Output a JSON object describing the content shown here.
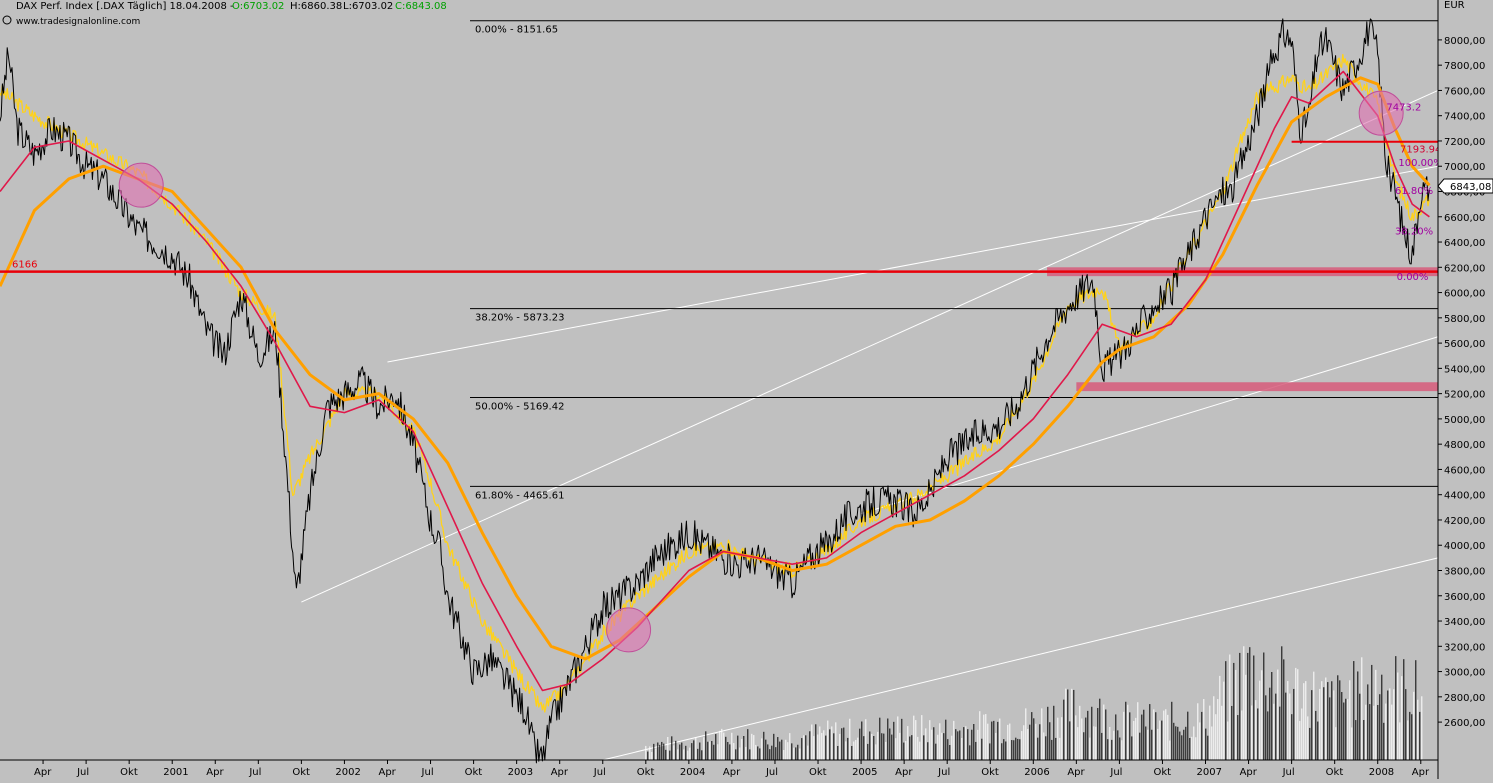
{
  "header": {
    "title_main": "DAX Perf. Index [.DAX  Täglich] 18.04.2008 - ",
    "open": "O:6703.02",
    "high": "H:6860.38",
    "low": "L:6703.02",
    "close": "C:6843.08",
    "watermark": "www.tradesignalonline.com",
    "watermark_icon": "copyright-icon"
  },
  "colors": {
    "background": "#c0c0c0",
    "price": "#000000",
    "ma_fast": "#ffd21a",
    "ma_mid": "#e0184a",
    "ma_slow": "#ffa000",
    "support_line": "#e8000a",
    "zone": "#d75a7a",
    "circle": "#e070b0",
    "fib_line": "#000000",
    "channel": "#ffffff",
    "volume": "#000000",
    "value_up": "#00a000",
    "value_down": "#e00000"
  },
  "chart_data": {
    "type": "line",
    "title": "DAX Perf. Index [.DAX  Täglich] 18.04.2008",
    "ylabel": "EUR",
    "ylim": [
      2300,
      8300
    ],
    "y_ticks": [
      "8000,00",
      "7800,00",
      "7600,00",
      "7400,00",
      "7200,00",
      "7000,00",
      "6800,00",
      "6600,00",
      "6400,00",
      "6200,00",
      "6000,00",
      "5800,00",
      "5600,00",
      "5400,00",
      "5200,00",
      "5000,00",
      "4800,00",
      "4600,00",
      "4400,00",
      "4200,00",
      "4000,00",
      "3800,00",
      "3600,00",
      "3400,00",
      "3200,00",
      "3000,00",
      "2800,00",
      "2600,00"
    ],
    "x_ticks": [
      "Apr",
      "Jul",
      "Okt",
      "2001",
      "Apr",
      "Jul",
      "Okt",
      "2002",
      "Apr",
      "Jul",
      "Okt",
      "2003",
      "Apr",
      "Jul",
      "Okt",
      "2004",
      "Apr",
      "Jul",
      "Okt",
      "2005",
      "Apr",
      "Jul",
      "Okt",
      "2006",
      "Apr",
      "Jul",
      "Okt",
      "2007",
      "Apr",
      "Jul",
      "Okt",
      "2008",
      "Apr"
    ],
    "x_ticks_numeric": [
      2000.25,
      2000.5,
      2000.75,
      2001.0,
      2001.25,
      2001.5,
      2001.75,
      2002.0,
      2002.25,
      2002.5,
      2002.75,
      2003.0,
      2003.25,
      2003.5,
      2003.75,
      2004.0,
      2004.25,
      2004.5,
      2004.75,
      2005.0,
      2005.25,
      2005.5,
      2005.75,
      2006.0,
      2006.25,
      2006.5,
      2006.75,
      2007.0,
      2007.25,
      2007.5,
      2007.75,
      2008.0,
      2008.25
    ],
    "xlim": [
      2000.0,
      2008.35
    ],
    "last_price": "6843,08",
    "series": [
      {
        "key": "price",
        "values_x": [
          2000.0,
          2000.05,
          2000.1,
          2000.2,
          2000.3,
          2000.4,
          2000.5,
          2000.6,
          2000.7,
          2000.8,
          2000.9,
          2001.0,
          2001.1,
          2001.2,
          2001.3,
          2001.4,
          2001.5,
          2001.6,
          2001.67,
          2001.72,
          2001.8,
          2001.9,
          2002.0,
          2002.1,
          2002.2,
          2002.3,
          2002.4,
          2002.5,
          2002.55,
          2002.6,
          2002.7,
          2002.75,
          2002.85,
          2002.95,
          2003.0,
          2003.05,
          2003.1,
          2003.15,
          2003.2,
          2003.3,
          2003.4,
          2003.5,
          2003.6,
          2003.7,
          2003.8,
          2003.9,
          2004.0,
          2004.1,
          2004.2,
          2004.3,
          2004.4,
          2004.5,
          2004.6,
          2004.7,
          2004.8,
          2004.9,
          2005.0,
          2005.1,
          2005.2,
          2005.3,
          2005.4,
          2005.5,
          2005.6,
          2005.7,
          2005.8,
          2005.9,
          2006.0,
          2006.1,
          2006.2,
          2006.3,
          2006.35,
          2006.4,
          2006.45,
          2006.5,
          2006.6,
          2006.7,
          2006.8,
          2006.9,
          2007.0,
          2007.1,
          2007.15,
          2007.2,
          2007.3,
          2007.4,
          2007.45,
          2007.5,
          2007.55,
          2007.6,
          2007.65,
          2007.7,
          2007.8,
          2007.9,
          2007.95,
          2008.0,
          2008.05,
          2008.1,
          2008.15,
          2008.2,
          2008.25,
          2008.3
        ],
        "values_y": [
          7400,
          7900,
          7300,
          7100,
          7300,
          7200,
          7000,
          6900,
          6700,
          6500,
          6400,
          6300,
          6100,
          5700,
          5500,
          6000,
          5500,
          5700,
          4500,
          3600,
          4400,
          5100,
          5200,
          5300,
          5100,
          5200,
          4800,
          4200,
          4000,
          3600,
          3200,
          3000,
          3100,
          2900,
          2800,
          2700,
          2400,
          2300,
          2600,
          2900,
          3200,
          3500,
          3600,
          3700,
          3900,
          4000,
          4100,
          4000,
          3900,
          3850,
          3900,
          3800,
          3700,
          3900,
          4000,
          4200,
          4300,
          4350,
          4350,
          4250,
          4400,
          4700,
          4800,
          4900,
          4950,
          5100,
          5400,
          5700,
          5900,
          6050,
          6100,
          5400,
          5450,
          5500,
          5700,
          5900,
          6000,
          6300,
          6600,
          6800,
          6800,
          7000,
          7400,
          7900,
          8050,
          8000,
          7300,
          7400,
          7900,
          8000,
          7600,
          7900,
          8100,
          7900,
          7000,
          6800,
          6500,
          6300,
          6800,
          6843
        ]
      },
      {
        "key": "ma_fast",
        "values_x": [
          2000.0,
          2000.2,
          2000.4,
          2000.6,
          2000.8,
          2001.0,
          2001.2,
          2001.4,
          2001.6,
          2001.7,
          2001.8,
          2002.0,
          2002.2,
          2002.4,
          2002.5,
          2002.6,
          2002.8,
          2003.0,
          2003.15,
          2003.3,
          2003.5,
          2003.7,
          2004.0,
          2004.2,
          2004.4,
          2004.6,
          2004.8,
          2005.0,
          2005.2,
          2005.4,
          2005.6,
          2005.8,
          2006.0,
          2006.2,
          2006.4,
          2006.5,
          2006.7,
          2006.9,
          2007.1,
          2007.3,
          2007.5,
          2007.6,
          2007.8,
          2008.0,
          2008.1,
          2008.2,
          2008.3
        ],
        "values_y": [
          7600,
          7400,
          7250,
          7100,
          6950,
          6700,
          6400,
          6000,
          5800,
          4400,
          4700,
          5200,
          5200,
          4900,
          4500,
          4000,
          3400,
          3000,
          2700,
          2900,
          3300,
          3600,
          3950,
          4000,
          3880,
          3800,
          3950,
          4200,
          4300,
          4450,
          4650,
          4850,
          5300,
          5900,
          6050,
          5550,
          5800,
          6300,
          6800,
          7550,
          7700,
          7600,
          7850,
          7500,
          6900,
          6600,
          6750
        ]
      },
      {
        "key": "ma_mid",
        "values_x": [
          2000.0,
          2000.2,
          2000.4,
          2000.6,
          2000.8,
          2001.0,
          2001.2,
          2001.4,
          2001.6,
          2001.8,
          2002.0,
          2002.2,
          2002.4,
          2002.6,
          2002.8,
          2003.0,
          2003.15,
          2003.3,
          2003.5,
          2003.7,
          2004.0,
          2004.2,
          2004.4,
          2004.6,
          2004.8,
          2005.0,
          2005.2,
          2005.4,
          2005.6,
          2005.8,
          2006.0,
          2006.2,
          2006.4,
          2006.5,
          2006.6,
          2006.8,
          2007.0,
          2007.2,
          2007.4,
          2007.5,
          2007.6,
          2007.8,
          2008.0,
          2008.1,
          2008.2,
          2008.3
        ],
        "values_y": [
          6800,
          7150,
          7200,
          7050,
          6900,
          6700,
          6400,
          6050,
          5600,
          5100,
          5050,
          5150,
          4900,
          4300,
          3700,
          3200,
          2850,
          2900,
          3100,
          3350,
          3800,
          3950,
          3900,
          3850,
          3900,
          4100,
          4250,
          4400,
          4550,
          4750,
          5000,
          5350,
          5750,
          5700,
          5650,
          5750,
          6100,
          6700,
          7300,
          7550,
          7500,
          7750,
          7400,
          7000,
          6700,
          6600
        ]
      },
      {
        "key": "ma_slow",
        "values_x": [
          2000.0,
          2000.2,
          2000.4,
          2000.6,
          2000.8,
          2001.0,
          2001.2,
          2001.4,
          2001.6,
          2001.8,
          2002.0,
          2002.2,
          2002.4,
          2002.6,
          2002.8,
          2003.0,
          2003.2,
          2003.4,
          2003.6,
          2004.0,
          2004.2,
          2004.4,
          2004.6,
          2004.8,
          2005.0,
          2005.2,
          2005.4,
          2005.6,
          2005.8,
          2006.0,
          2006.2,
          2006.4,
          2006.5,
          2006.7,
          2006.9,
          2007.1,
          2007.3,
          2007.5,
          2007.7,
          2007.9,
          2008.0,
          2008.1,
          2008.2,
          2008.3
        ],
        "values_y": [
          6050,
          6650,
          6900,
          7000,
          6900,
          6800,
          6500,
          6200,
          5700,
          5350,
          5150,
          5200,
          5000,
          4650,
          4100,
          3600,
          3200,
          3100,
          3250,
          3750,
          3950,
          3900,
          3800,
          3850,
          4000,
          4150,
          4200,
          4350,
          4550,
          4800,
          5100,
          5450,
          5550,
          5650,
          5900,
          6300,
          6850,
          7350,
          7550,
          7700,
          7650,
          7300,
          7000,
          6850
        ]
      },
      {
        "key": "volume",
        "values_x": [
          2003.75,
          2004.0,
          2004.25,
          2004.5,
          2004.75,
          2005.0,
          2005.25,
          2005.5,
          2005.75,
          2006.0,
          2006.25,
          2006.5,
          2006.75,
          2007.0,
          2007.25,
          2007.5,
          2007.75,
          2008.0,
          2008.25
        ],
        "values_y": [
          0.05,
          0.06,
          0.08,
          0.07,
          0.09,
          0.1,
          0.11,
          0.1,
          0.12,
          0.13,
          0.18,
          0.14,
          0.13,
          0.15,
          0.32,
          0.25,
          0.2,
          0.27,
          0.23
        ]
      }
    ],
    "fibonacci": [
      {
        "label": "0.00% - 8151.65",
        "value": 8151.65
      },
      {
        "label": "38.20% - 5873.23",
        "value": 5873.23
      },
      {
        "label": "50.00% - 5169.42",
        "value": 5169.42
      },
      {
        "label": "61.80% - 4465.61",
        "value": 4465.61
      }
    ],
    "support_line": {
      "label": "6166",
      "value": 6166
    },
    "resistance_short": {
      "label": "7193.94",
      "value": 7193.94,
      "from_x": 2007.5
    },
    "zones": [
      {
        "from_x": 2006.08,
        "to_x": 2008.35,
        "y_low": 6130,
        "y_high": 6200
      },
      {
        "from_x": 2006.25,
        "to_x": 2008.35,
        "y_low": 5220,
        "y_high": 5290
      }
    ],
    "circles": [
      {
        "x": 2000.82,
        "y": 6850
      },
      {
        "x": 2003.65,
        "y": 3330
      },
      {
        "x": 2008.02,
        "y": 7420
      }
    ],
    "channel_lines": [
      {
        "x1": 2001.75,
        "y1": 3550,
        "x2": 2008.35,
        "y2": 7600
      },
      {
        "x1": 2002.25,
        "y1": 5450,
        "x2": 2008.35,
        "y2": 7000
      },
      {
        "x1": 2005.0,
        "y1": 4250,
        "x2": 2008.35,
        "y2": 5650
      },
      {
        "x1": 2003.5,
        "y1": 2300,
        "x2": 2008.35,
        "y2": 3900
      }
    ],
    "retracement_labels": [
      {
        "text": "7473.2",
        "x": 2008.05,
        "y": 7440
      },
      {
        "text": "100.00%",
        "x": 2008.12,
        "y": 7000
      },
      {
        "text": "61.80%",
        "x": 2008.1,
        "y": 6780
      },
      {
        "text": "38.20%",
        "x": 2008.1,
        "y": 6460
      },
      {
        "text": "0.00%",
        "x": 2008.11,
        "y": 6100
      }
    ]
  }
}
